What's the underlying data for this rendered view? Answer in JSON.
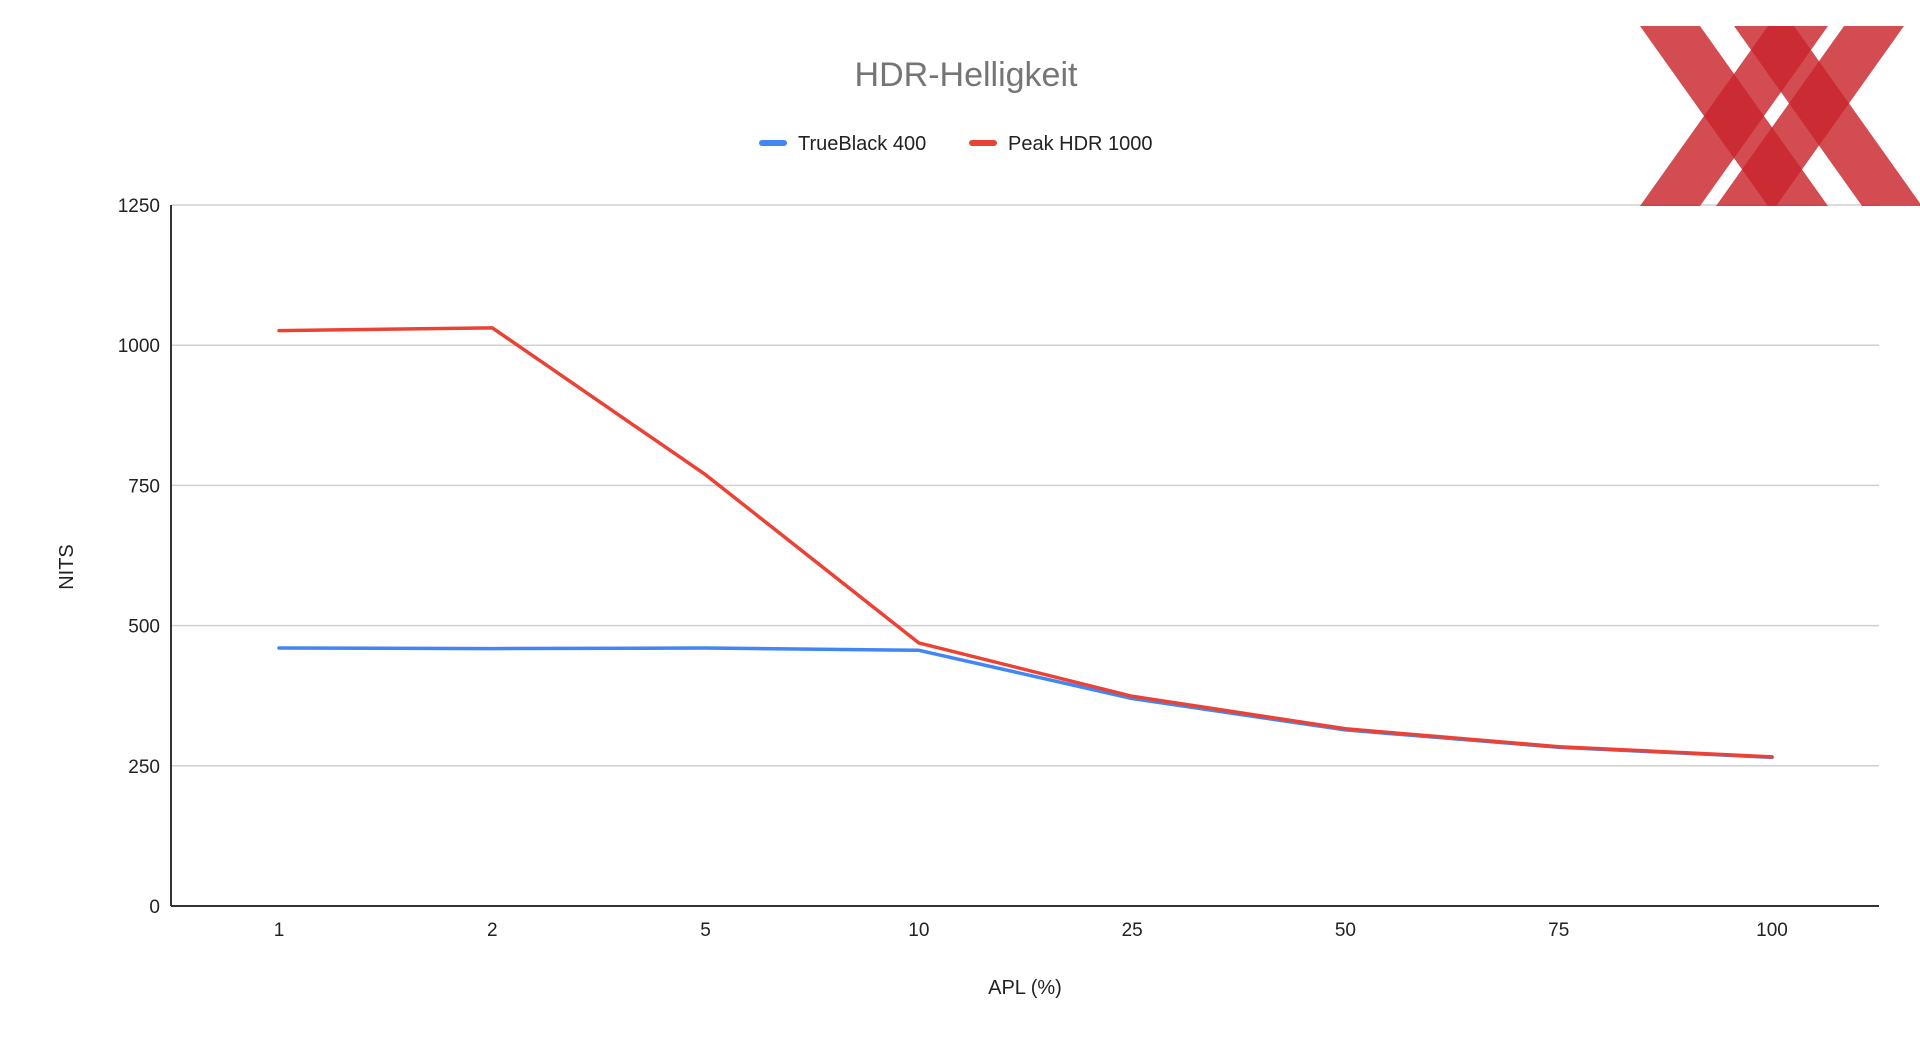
{
  "chart_data": {
    "type": "line",
    "title": "HDR-Helligkeit",
    "xlabel": "APL (%)",
    "ylabel": "NITS",
    "categories": [
      "1",
      "2",
      "5",
      "10",
      "25",
      "50",
      "75",
      "100"
    ],
    "ylim": [
      0,
      1250
    ],
    "yticks": [
      0,
      250,
      500,
      750,
      1000,
      1250
    ],
    "grid": true,
    "legend_position": "top-center",
    "series": [
      {
        "name": "TrueBlack 400",
        "color": "#4285f4",
        "values": [
          460,
          459,
          460,
          456,
          370,
          314,
          283,
          265
        ]
      },
      {
        "name": "Peak HDR 1000",
        "color": "#ea4335",
        "values": [
          1026,
          1031,
          769,
          469,
          374,
          316,
          284,
          266
        ]
      }
    ]
  },
  "logo": {
    "name": "XX",
    "color": "#c9252c"
  }
}
